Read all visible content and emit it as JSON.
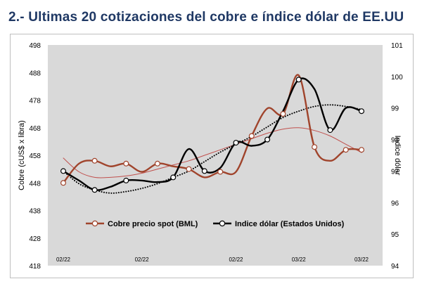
{
  "title": "2.- Ultimas 20 cotizaciones del cobre e índice dólar de EE.UU",
  "chart_data": {
    "type": "line",
    "title": "",
    "x": [
      "02/22",
      "02/22",
      "02/22",
      "02/22",
      "02/22",
      "02/22",
      "02/22",
      "02/22",
      "02/22",
      "02/22",
      "02/22",
      "02/22",
      "02/22",
      "03/22",
      "03/22",
      "03/22",
      "03/22",
      "03/22",
      "03/22",
      "03/22"
    ],
    "x_tick_labels": [
      "02/22",
      "02/22",
      "02/22",
      "03/22",
      "03/22"
    ],
    "y_left": {
      "label": "Cobre (cUS$ x libra)",
      "range": [
        418,
        498
      ],
      "ticks": [
        498,
        488,
        478,
        468,
        458,
        448,
        438,
        428,
        418
      ]
    },
    "y_right": {
      "label": "Indice dólar",
      "range": [
        94,
        101
      ],
      "ticks": [
        101,
        100,
        99,
        98,
        97,
        96,
        95,
        94
      ]
    },
    "series": [
      {
        "name": "Cobre precio spot (BML)",
        "axis": "left",
        "color": "#a0442c",
        "values": [
          448,
          455,
          456,
          454,
          455,
          452,
          455,
          454,
          453,
          450,
          452,
          452,
          465,
          475,
          473,
          487,
          461,
          456,
          460,
          460
        ]
      },
      {
        "name": "Indice dólar (Estados Unidos)",
        "axis": "right",
        "color": "#000000",
        "values": [
          97.0,
          96.7,
          96.4,
          96.5,
          96.7,
          96.7,
          96.65,
          96.8,
          97.7,
          97.0,
          97.1,
          97.9,
          97.8,
          98.0,
          98.9,
          99.9,
          99.6,
          98.3,
          99.0,
          98.9
        ]
      },
      {
        "name": "",
        "kind": "trendline",
        "of": "Cobre precio spot (BML)",
        "style": "solid-thin",
        "color": "#c0504d",
        "axis": "left",
        "values": [
          457,
          452,
          450,
          450,
          450.5,
          451.5,
          453,
          454.5,
          456,
          458,
          460,
          462,
          464,
          466,
          467.5,
          468,
          467,
          465,
          462,
          459
        ]
      },
      {
        "name": "",
        "kind": "trendline",
        "of": "Indice dólar (Estados Unidos)",
        "style": "dotted",
        "color": "#000000",
        "axis": "right",
        "values": [
          97.0,
          96.6,
          96.4,
          96.3,
          96.35,
          96.45,
          96.6,
          96.8,
          97.0,
          97.3,
          97.6,
          97.85,
          98.1,
          98.4,
          98.7,
          98.9,
          99.05,
          99.1,
          99.05,
          98.95
        ]
      }
    ],
    "legend": [
      "Cobre precio spot (BML)",
      "Indice dólar (Estados Unidos)"
    ],
    "legend_position": "bottom",
    "grid": false,
    "colors": {
      "plot_bg": "#d9d9d9",
      "frame": "#bfbfbf",
      "title": "#1f3864"
    }
  }
}
